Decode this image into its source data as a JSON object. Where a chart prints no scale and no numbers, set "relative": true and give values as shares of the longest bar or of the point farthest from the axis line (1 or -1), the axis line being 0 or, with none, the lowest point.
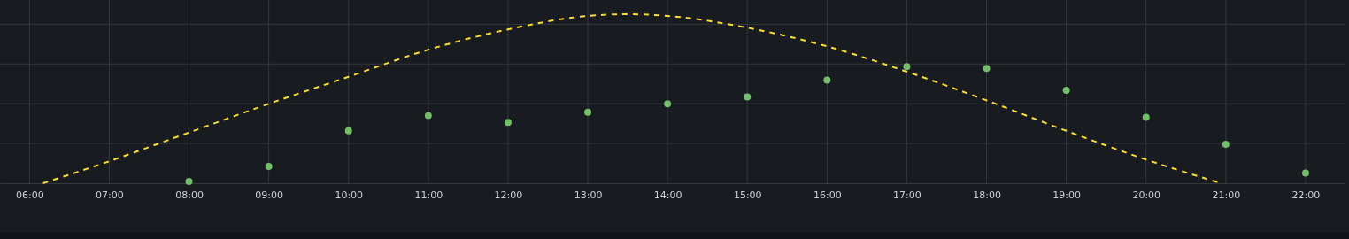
{
  "chart_data": {
    "type": "scatter",
    "relative": true,
    "grid": true,
    "xlim": [
      5.63,
      22.5
    ],
    "xticks": [
      {
        "value": 6,
        "label": "06:00"
      },
      {
        "value": 7,
        "label": "07:00"
      },
      {
        "value": 8,
        "label": "08:00"
      },
      {
        "value": 9,
        "label": "09:00"
      },
      {
        "value": 10,
        "label": "10:00"
      },
      {
        "value": 11,
        "label": "11:00"
      },
      {
        "value": 12,
        "label": "12:00"
      },
      {
        "value": 13,
        "label": "13:00"
      },
      {
        "value": 14,
        "label": "14:00"
      },
      {
        "value": 15,
        "label": "15:00"
      },
      {
        "value": 16,
        "label": "16:00"
      },
      {
        "value": 17,
        "label": "17:00"
      },
      {
        "value": 18,
        "label": "18:00"
      },
      {
        "value": 19,
        "label": "19:00"
      },
      {
        "value": 20,
        "label": "20:00"
      },
      {
        "value": 21,
        "label": "21:00"
      },
      {
        "value": 22,
        "label": "22:00"
      }
    ],
    "series": [
      {
        "type": "line",
        "line_style": "dashed",
        "marker": "none",
        "color": "#fade2a",
        "x": [
          6.17,
          7,
          8,
          9,
          10,
          11,
          12,
          13,
          13.5,
          14,
          15,
          16,
          17,
          18,
          19,
          20,
          20.94
        ],
        "values": [
          0,
          0.13,
          0.3,
          0.47,
          0.63,
          0.79,
          0.91,
          0.99,
          1,
          0.99,
          0.92,
          0.81,
          0.66,
          0.49,
          0.31,
          0.14,
          0
        ]
      },
      {
        "marker": "circle",
        "color": "#73bf69",
        "x": [
          8,
          9,
          10,
          11,
          12,
          13,
          14,
          15,
          16,
          17,
          18,
          19,
          20,
          21,
          22
        ],
        "values": [
          0.01,
          0.1,
          0.31,
          0.4,
          0.36,
          0.42,
          0.47,
          0.51,
          0.61,
          0.69,
          0.68,
          0.55,
          0.39,
          0.23,
          0.06
        ]
      }
    ]
  }
}
